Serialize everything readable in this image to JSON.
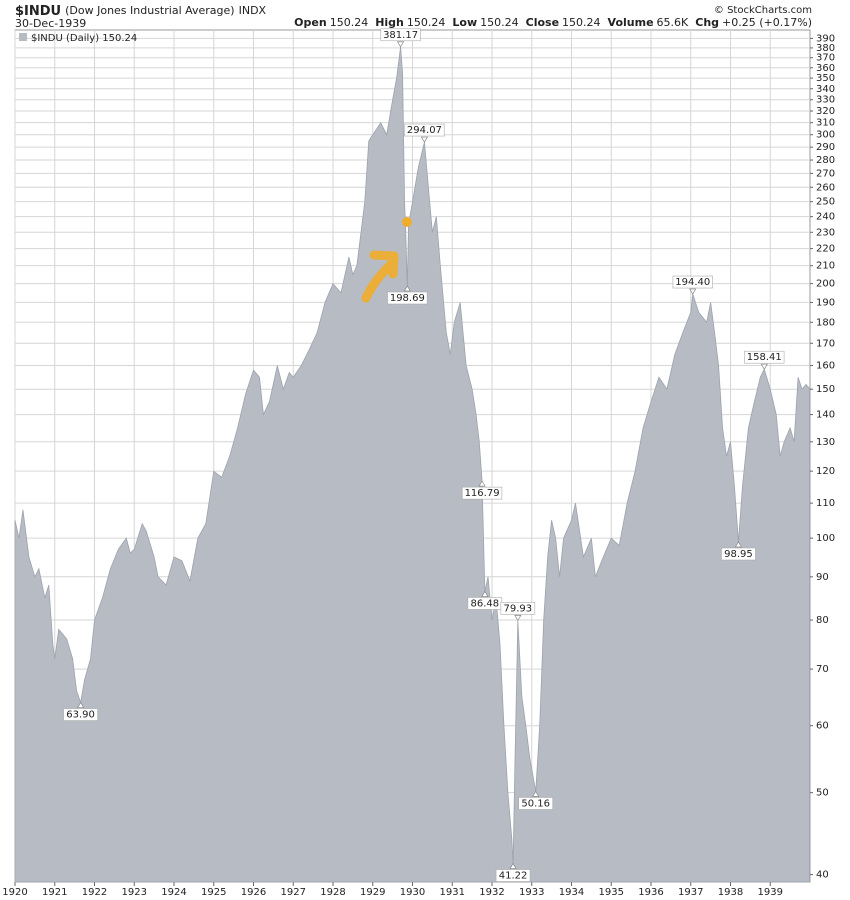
{
  "chart_data": {
    "type": "area",
    "title": "$INDU",
    "subtitle": "(Dow Jones Industrial Average)",
    "exchange": "INDX",
    "date": "30-Dec-1939",
    "credit": "© StockCharts.com",
    "quote": [
      {
        "label": "Open",
        "value": "150.24"
      },
      {
        "label": "High",
        "value": "150.24"
      },
      {
        "label": "Low",
        "value": "150.24"
      },
      {
        "label": "Close",
        "value": "150.24"
      },
      {
        "label": "Volume",
        "value": "65.6K"
      },
      {
        "label": "Chg",
        "value": "+0.25 (+0.17%)"
      }
    ],
    "log_scale": true,
    "grid": true,
    "xlim": [
      1920,
      1940
    ],
    "xticks": [
      1920,
      1921,
      1922,
      1923,
      1924,
      1925,
      1926,
      1927,
      1928,
      1929,
      1930,
      1931,
      1932,
      1933,
      1934,
      1935,
      1936,
      1937,
      1938,
      1939
    ],
    "ylim": [
      39.2,
      399
    ],
    "yticks": [
      40,
      50,
      60,
      70,
      80,
      90,
      100,
      110,
      120,
      130,
      140,
      150,
      160,
      170,
      180,
      190,
      200,
      210,
      220,
      230,
      240,
      250,
      260,
      270,
      280,
      290,
      300,
      310,
      320,
      330,
      340,
      350,
      360,
      370,
      380,
      390
    ],
    "x": [
      1920.0,
      1920.1,
      1920.2,
      1920.35,
      1920.5,
      1920.6,
      1920.75,
      1920.85,
      1920.95,
      1921.0,
      1921.1,
      1921.3,
      1921.45,
      1921.55,
      1921.65,
      1921.75,
      1921.9,
      1922.0,
      1922.2,
      1922.4,
      1922.6,
      1922.8,
      1922.9,
      1923.0,
      1923.2,
      1923.3,
      1923.5,
      1923.6,
      1923.8,
      1924.0,
      1924.2,
      1924.4,
      1924.6,
      1924.8,
      1925.0,
      1925.2,
      1925.4,
      1925.6,
      1925.8,
      1926.0,
      1926.15,
      1926.25,
      1926.4,
      1926.6,
      1926.75,
      1926.9,
      1927.0,
      1927.2,
      1927.4,
      1927.6,
      1927.8,
      1928.0,
      1928.2,
      1928.4,
      1928.5,
      1928.6,
      1928.8,
      1928.9,
      1929.0,
      1929.2,
      1929.35,
      1929.5,
      1929.6,
      1929.7,
      1929.75,
      1929.8,
      1929.83,
      1929.87,
      1929.9,
      1930.0,
      1930.15,
      1930.3,
      1930.4,
      1930.5,
      1930.6,
      1930.7,
      1930.85,
      1930.95,
      1931.05,
      1931.2,
      1931.35,
      1931.5,
      1931.6,
      1931.68,
      1931.75,
      1931.82,
      1931.9,
      1932.0,
      1932.1,
      1932.2,
      1932.3,
      1932.4,
      1932.5,
      1932.53,
      1932.58,
      1932.65,
      1932.75,
      1932.85,
      1932.95,
      1933.1,
      1933.2,
      1933.3,
      1933.4,
      1933.5,
      1933.6,
      1933.7,
      1933.8,
      1934.0,
      1934.1,
      1934.3,
      1934.5,
      1934.6,
      1934.8,
      1935.0,
      1935.2,
      1935.4,
      1935.6,
      1935.8,
      1936.0,
      1936.2,
      1936.4,
      1936.6,
      1936.8,
      1937.0,
      1937.05,
      1937.2,
      1937.4,
      1937.5,
      1937.6,
      1937.7,
      1937.8,
      1937.9,
      1938.0,
      1938.1,
      1938.2,
      1938.3,
      1938.45,
      1938.6,
      1938.75,
      1938.85,
      1939.0,
      1939.15,
      1939.25,
      1939.35,
      1939.5,
      1939.6,
      1939.7,
      1939.8,
      1939.9,
      1939.99
    ],
    "series": [
      {
        "name": "$INDU (Daily) 150.24",
        "color": "#b6bbc4",
        "values": [
          105,
          100,
          108,
          95,
          90,
          92,
          85,
          88,
          75,
          72,
          78,
          76,
          72,
          66,
          63.9,
          68,
          72,
          80,
          85,
          92,
          97,
          100,
          96,
          97,
          104,
          102,
          95,
          90,
          88,
          95,
          94,
          89,
          100,
          104,
          120,
          118,
          125,
          135,
          148,
          158,
          155,
          140,
          145,
          160,
          150,
          157,
          155,
          160,
          167,
          175,
          190,
          200,
          195,
          215,
          205,
          210,
          250,
          295,
          300,
          310,
          300,
          330,
          350,
          381.17,
          355,
          250,
          230,
          198.69,
          235,
          250,
          275,
          294.07,
          260,
          230,
          240,
          210,
          175,
          165,
          180,
          190,
          160,
          150,
          140,
          130,
          116.79,
          86.48,
          90,
          80,
          85,
          75,
          60,
          50,
          44,
          41.22,
          55,
          79.93,
          65,
          60,
          55,
          50.16,
          60,
          80,
          95,
          105,
          100,
          90,
          100,
          105,
          110,
          95,
          100,
          90,
          95,
          100,
          98,
          110,
          120,
          135,
          145,
          155,
          150,
          165,
          175,
          185,
          194.4,
          185,
          180,
          190,
          175,
          160,
          135,
          125,
          130,
          115,
          98.95,
          115,
          135,
          145,
          155,
          158.41,
          150,
          140,
          125,
          130,
          135,
          130,
          155,
          150,
          152,
          150.24
        ]
      }
    ],
    "annotations": [
      {
        "x": 1929.7,
        "value": 381.17,
        "label": "381.17"
      },
      {
        "x": 1930.3,
        "value": 294.07,
        "label": "294.07"
      },
      {
        "x": 1929.87,
        "value": 198.69,
        "label": "198.69"
      },
      {
        "x": 1931.75,
        "value": 116.79,
        "label": "116.79"
      },
      {
        "x": 1931.82,
        "value": 86.48,
        "label": "86.48"
      },
      {
        "x": 1932.65,
        "value": 79.93,
        "label": "79.93"
      },
      {
        "x": 1921.65,
        "value": 63.9,
        "label": "63.90"
      },
      {
        "x": 1932.53,
        "value": 41.22,
        "label": "41.22"
      },
      {
        "x": 1933.1,
        "value": 50.16,
        "label": "50.16"
      },
      {
        "x": 1937.05,
        "value": 194.4,
        "label": "194.40"
      },
      {
        "x": 1938.85,
        "value": 158.41,
        "label": "158.41"
      },
      {
        "x": 1938.2,
        "value": 98.95,
        "label": "98.95"
      }
    ]
  }
}
